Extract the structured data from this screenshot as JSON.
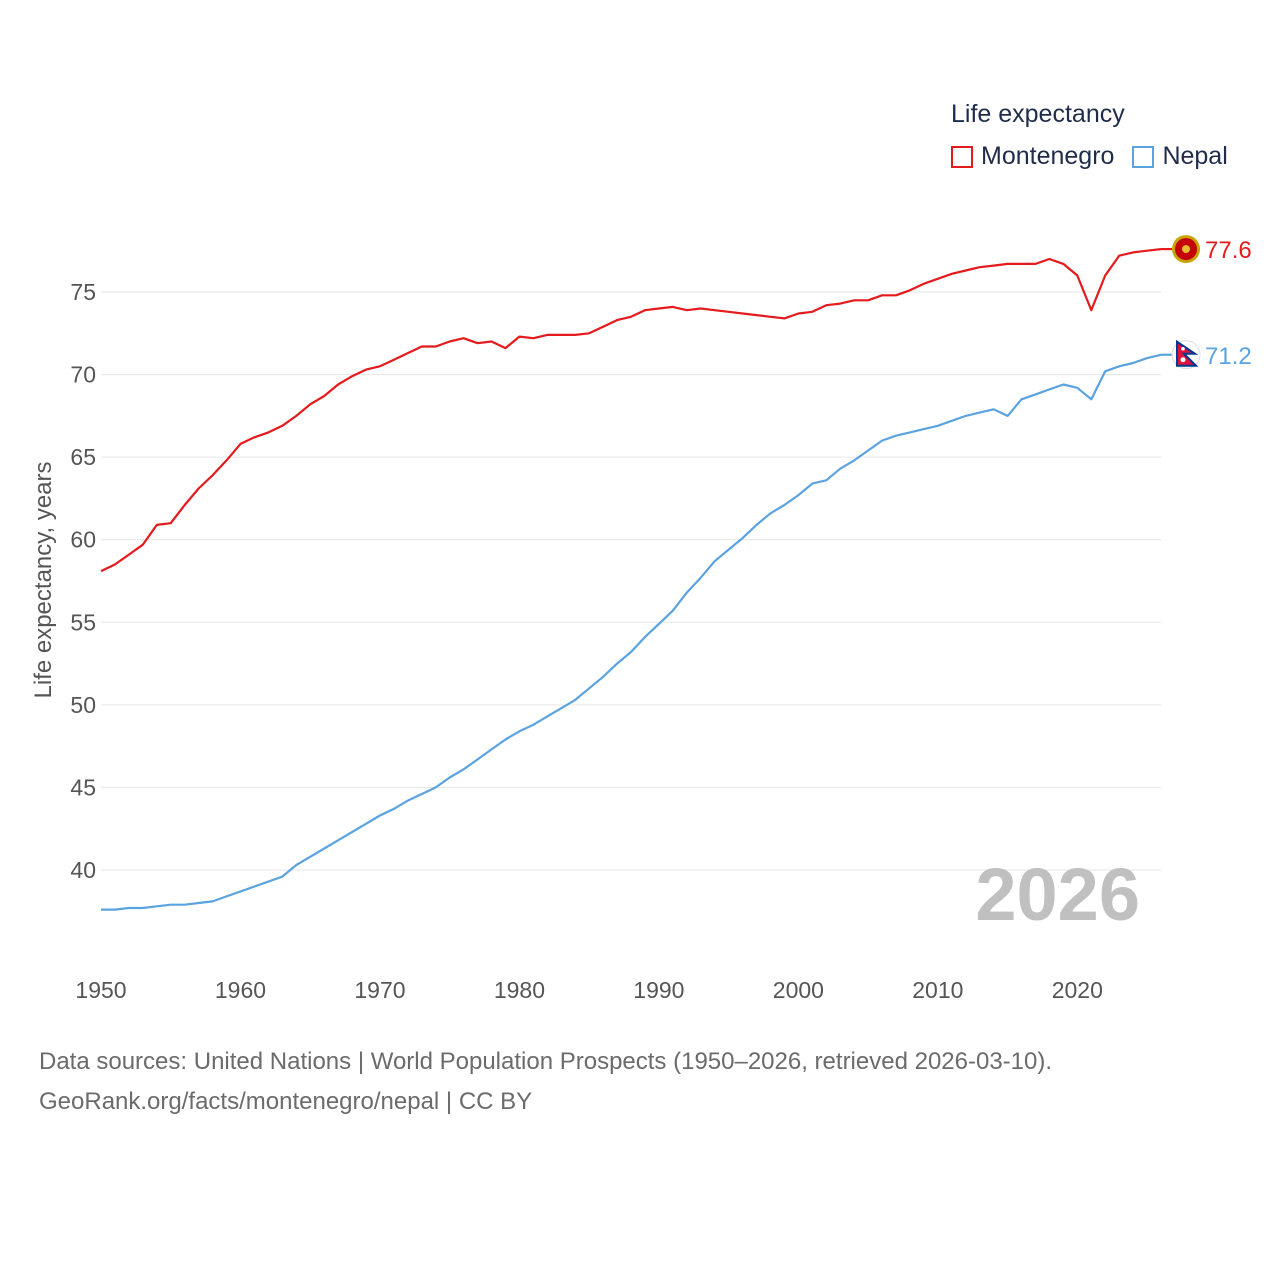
{
  "legend": {
    "title": "Life expectancy",
    "items": [
      {
        "label": "Montenegro",
        "color": "#e41a1c"
      },
      {
        "label": "Nepal",
        "color": "#5ba3e0"
      }
    ]
  },
  "source": {
    "line1": "Data sources: United Nations | World Population Prospects (1950–2026, retrieved 2026-03-10).",
    "line2": "GeoRank.org/facts/montenegro/nepal | CC BY"
  },
  "chart_data": {
    "type": "line",
    "title": "Life expectancy",
    "xlabel": "",
    "ylabel": "Life expectancy, years",
    "xlim": [
      1950,
      2026
    ],
    "ylim": [
      35,
      78
    ],
    "xticks": [
      1950,
      1960,
      1970,
      1980,
      1990,
      2000,
      2010,
      2020
    ],
    "yticks": [
      40,
      45,
      50,
      55,
      60,
      65,
      70,
      75
    ],
    "grid": true,
    "year_label": "2026",
    "x": [
      1950,
      1951,
      1952,
      1953,
      1954,
      1955,
      1956,
      1957,
      1958,
      1959,
      1960,
      1961,
      1962,
      1963,
      1964,
      1965,
      1966,
      1967,
      1968,
      1969,
      1970,
      1971,
      1972,
      1973,
      1974,
      1975,
      1976,
      1977,
      1978,
      1979,
      1980,
      1981,
      1982,
      1983,
      1984,
      1985,
      1986,
      1987,
      1988,
      1989,
      1990,
      1991,
      1992,
      1993,
      1994,
      1995,
      1996,
      1997,
      1998,
      1999,
      2000,
      2001,
      2002,
      2003,
      2004,
      2005,
      2006,
      2007,
      2008,
      2009,
      2010,
      2011,
      2012,
      2013,
      2014,
      2015,
      2016,
      2017,
      2018,
      2019,
      2020,
      2021,
      2022,
      2023,
      2024,
      2025,
      2026
    ],
    "series": [
      {
        "name": "Montenegro",
        "color": "#e41a1c",
        "end_label": "77.6",
        "values": [
          58.1,
          58.5,
          59.1,
          59.7,
          60.9,
          61.0,
          62.1,
          63.1,
          63.9,
          64.8,
          65.8,
          66.2,
          66.5,
          66.9,
          67.5,
          68.2,
          68.7,
          69.4,
          69.9,
          70.3,
          70.5,
          70.9,
          71.3,
          71.7,
          71.7,
          72.0,
          72.2,
          71.9,
          72.0,
          71.6,
          72.3,
          72.2,
          72.4,
          72.4,
          72.4,
          72.5,
          72.9,
          73.3,
          73.5,
          73.9,
          74.0,
          74.1,
          73.9,
          74.0,
          73.9,
          73.8,
          73.7,
          73.6,
          73.5,
          73.4,
          73.7,
          73.8,
          74.2,
          74.3,
          74.5,
          74.5,
          74.8,
          74.8,
          75.1,
          75.5,
          75.8,
          76.1,
          76.3,
          76.5,
          76.6,
          76.7,
          76.7,
          76.7,
          77.0,
          76.7,
          76.0,
          73.9,
          76.0,
          77.2,
          77.4,
          77.5,
          77.6
        ]
      },
      {
        "name": "Nepal",
        "color": "#5ba3e0",
        "end_label": "71.2",
        "values": [
          37.6,
          37.6,
          37.7,
          37.7,
          37.8,
          37.9,
          37.9,
          38.0,
          38.1,
          38.4,
          38.7,
          39.0,
          39.3,
          39.6,
          40.3,
          40.8,
          41.3,
          41.8,
          42.3,
          42.8,
          43.3,
          43.7,
          44.2,
          44.6,
          45.0,
          45.6,
          46.1,
          46.7,
          47.3,
          47.9,
          48.4,
          48.8,
          49.3,
          49.8,
          50.3,
          51.0,
          51.7,
          52.5,
          53.2,
          54.1,
          54.9,
          55.7,
          56.8,
          57.7,
          58.7,
          59.4,
          60.1,
          60.9,
          61.6,
          62.1,
          62.7,
          63.4,
          63.6,
          64.3,
          64.8,
          65.4,
          66.0,
          66.3,
          66.5,
          66.7,
          66.9,
          67.2,
          67.5,
          67.7,
          67.9,
          67.5,
          68.5,
          68.8,
          69.1,
          69.4,
          69.2,
          68.5,
          70.2,
          70.5,
          70.7,
          71.0,
          71.2
        ]
      }
    ]
  }
}
